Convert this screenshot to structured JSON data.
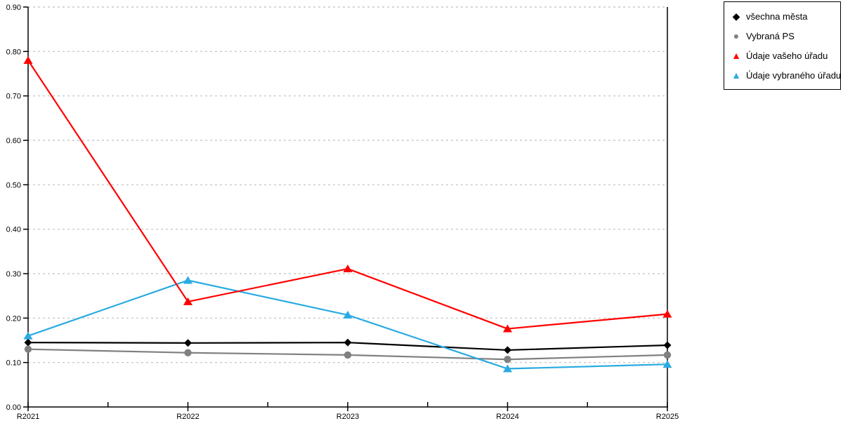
{
  "chart_data": {
    "type": "line",
    "title": "",
    "xlabel": "",
    "ylabel": "",
    "categories": [
      "R2021",
      "R2022",
      "R2023",
      "R2024",
      "R2025"
    ],
    "series": [
      {
        "name": "všechna města",
        "color": "#000000",
        "marker": "diamond",
        "glyph": "◆",
        "values": [
          0.145,
          0.144,
          0.145,
          0.128,
          0.139
        ]
      },
      {
        "name": "Vybraná PS",
        "color": "#808080",
        "marker": "circle",
        "glyph": "●",
        "values": [
          0.13,
          0.122,
          0.117,
          0.107,
          0.117
        ]
      },
      {
        "name": "Údaje vašeho úřadu",
        "color": "#ff0000",
        "marker": "triangle",
        "glyph": "▲",
        "values": [
          0.78,
          0.237,
          0.311,
          0.176,
          0.209
        ]
      },
      {
        "name": "Údaje vybraného úřadu",
        "color": "#29abe2",
        "marker": "triangle",
        "glyph": "▲",
        "values": [
          0.16,
          0.285,
          0.207,
          0.086,
          0.096
        ]
      }
    ],
    "ylim": [
      0.0,
      0.9
    ],
    "ytick_step": 0.1,
    "ytick_labels": [
      "0.00",
      "0.10",
      "0.20",
      "0.30",
      "0.40",
      "0.50",
      "0.60",
      "0.70",
      "0.80",
      "0.90"
    ],
    "grid": "horizontal-dashed",
    "grid_color": "#bfbfbf",
    "axis_color": "#000000",
    "legend_position": "top-right"
  }
}
